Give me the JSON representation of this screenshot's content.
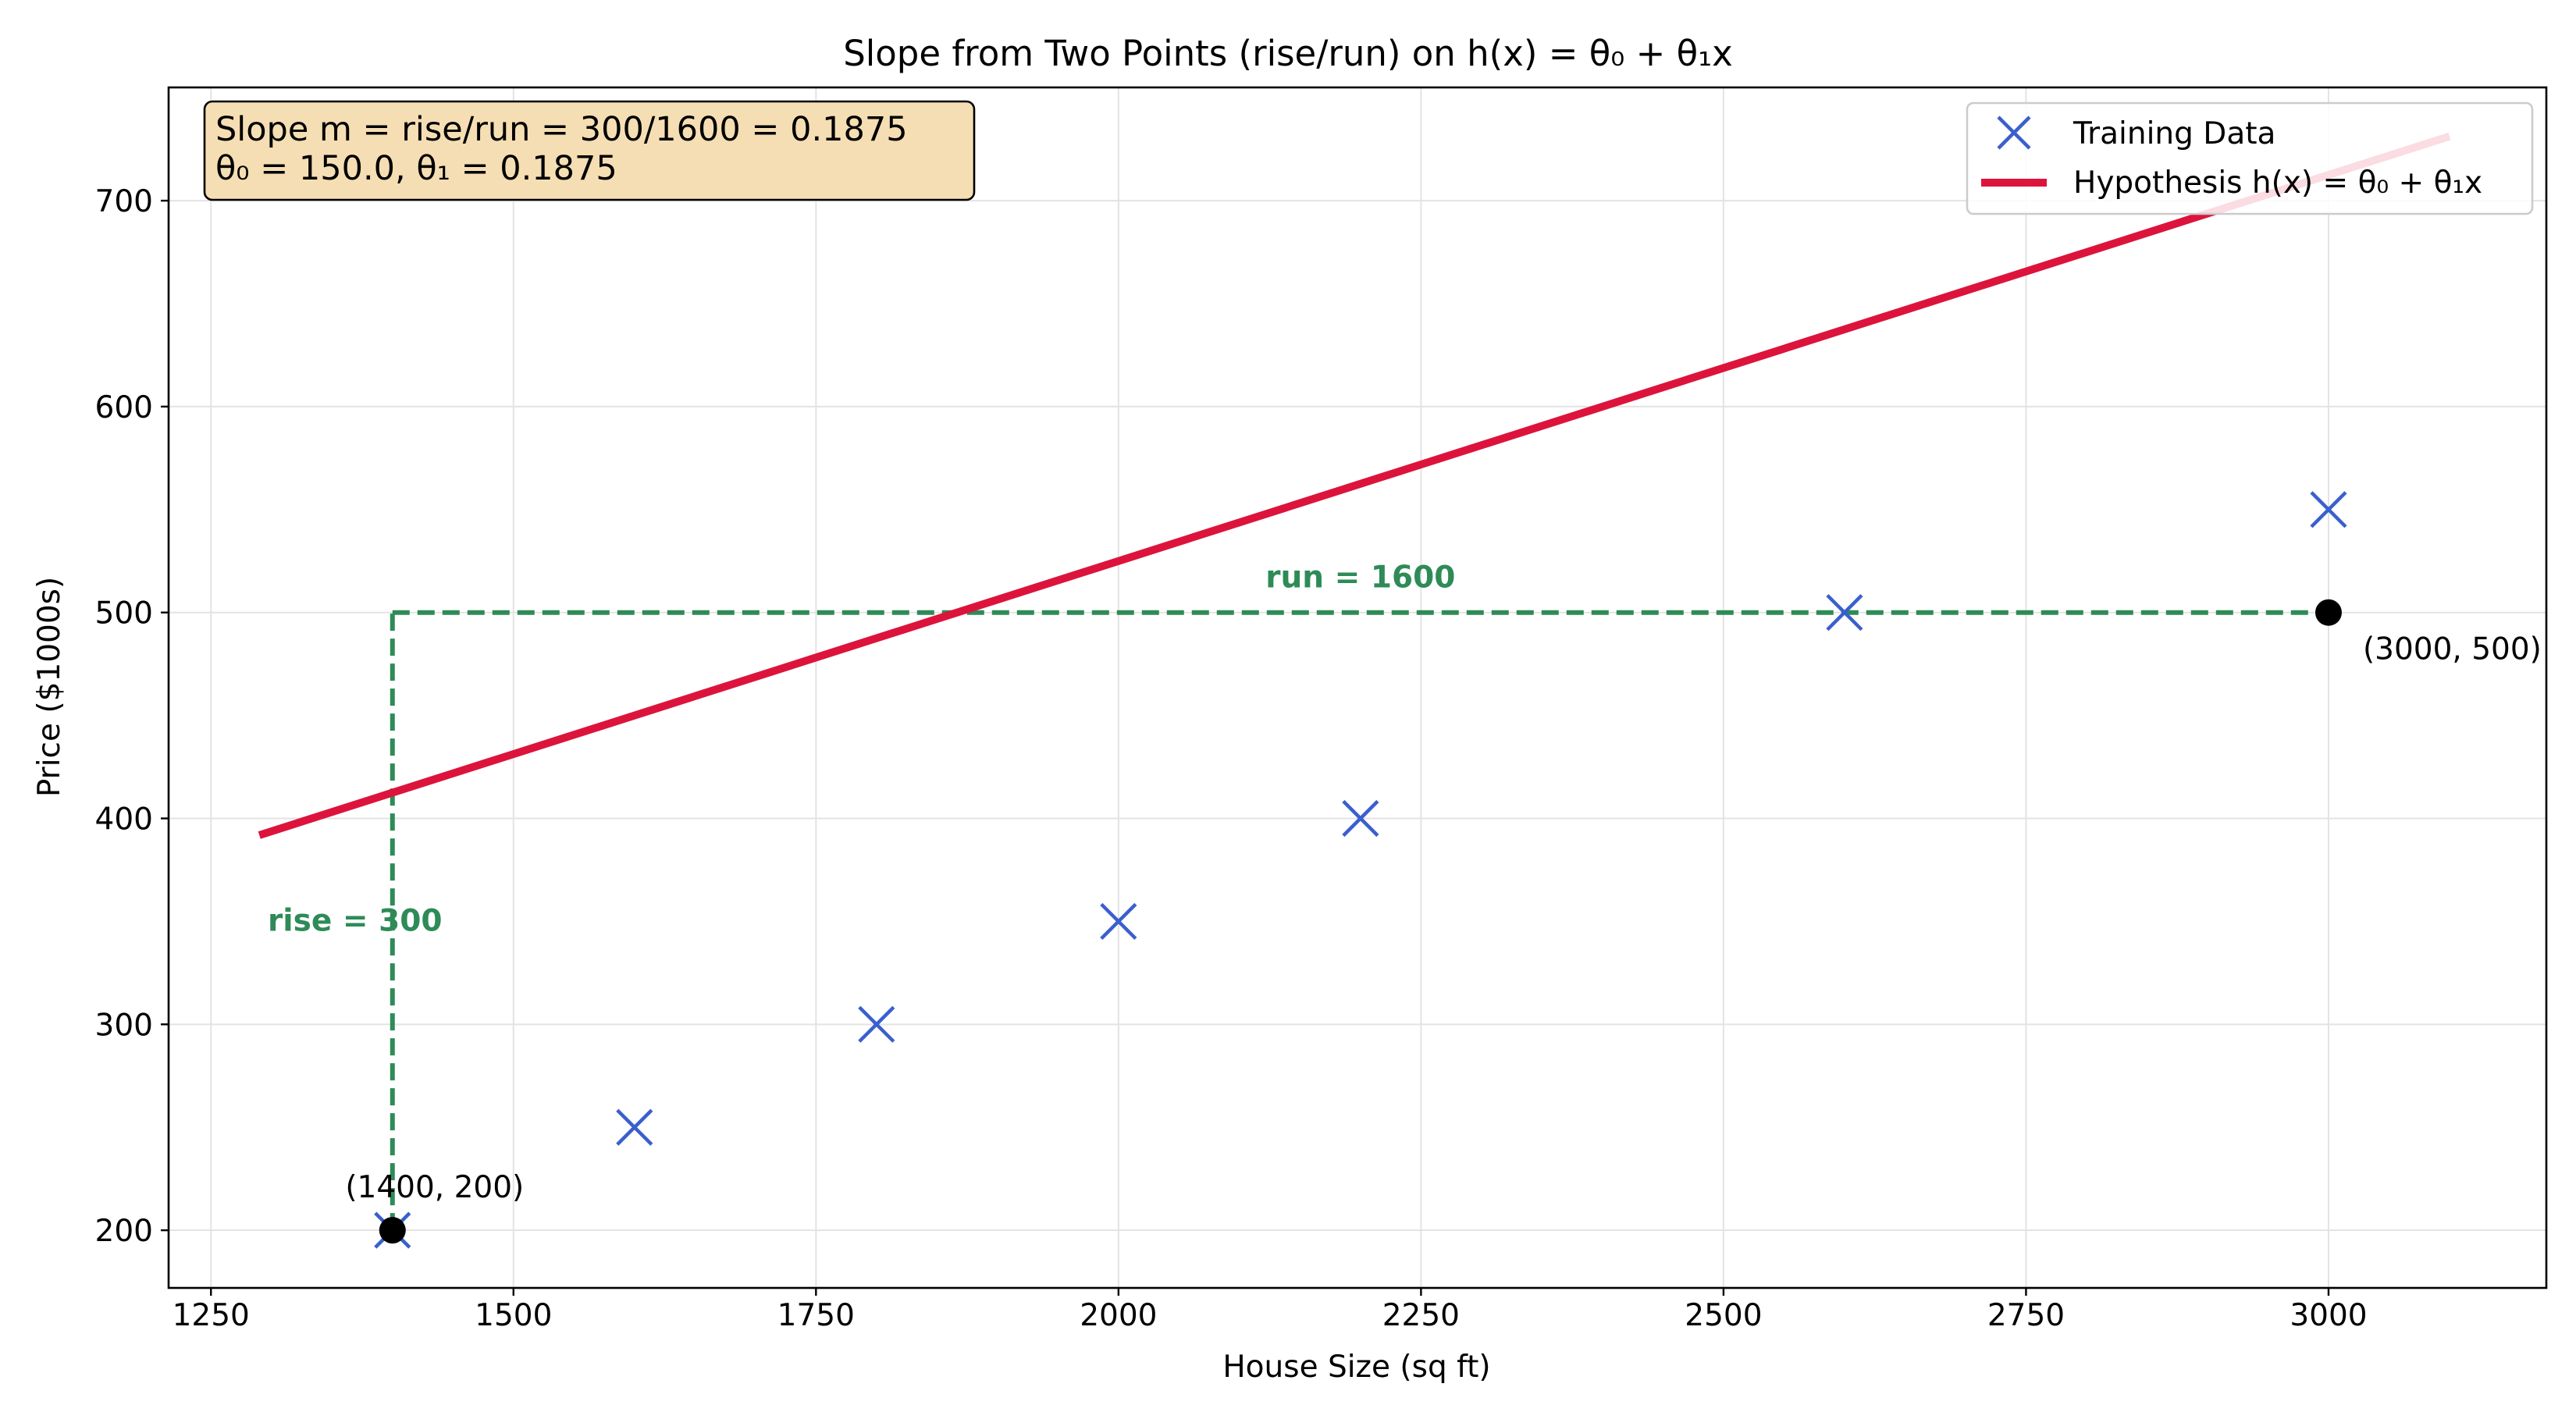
{
  "chart_data": {
    "type": "scatter",
    "title": "Slope from Two Points (rise/run) on h(x) = θ₀ + θ₁x",
    "xlabel": "House Size (sq ft)",
    "ylabel": "Price ($1000s)",
    "xlim": [
      1215,
      3180
    ],
    "ylim": [
      172,
      755
    ],
    "x_ticks": [
      1250,
      1500,
      1750,
      2000,
      2250,
      2500,
      2750,
      3000
    ],
    "y_ticks": [
      200,
      300,
      400,
      500,
      600,
      700
    ],
    "grid": true,
    "legend_position": "top-right",
    "series": [
      {
        "name": "Training Data",
        "marker": "x",
        "color": "#3a5fcd",
        "x": [
          1400,
          1600,
          1800,
          2000,
          2200,
          2600,
          3000
        ],
        "y": [
          200,
          250,
          300,
          350,
          400,
          500,
          550
        ]
      },
      {
        "name": "Hypothesis h(x) = θ₀ + θ₁x",
        "kind": "line",
        "color": "#dc143c",
        "x": [
          1290,
          3100
        ],
        "theta0": 150.0,
        "theta1": 0.1875
      }
    ],
    "points": [
      {
        "x": 1400,
        "y": 200,
        "label": "(1400, 200)"
      },
      {
        "x": 3000,
        "y": 500,
        "label": "(3000, 500)"
      }
    ],
    "rise_run": {
      "color": "#2e8b57",
      "x_start": 1400,
      "x_end": 3000,
      "y_start": 200,
      "y_end": 500,
      "rise_label": "rise = 300",
      "run_label": "run = 1600"
    },
    "info_box": {
      "line1": "Slope m = rise/run = 300/1600 = 0.1875",
      "line2": "θ₀ = 150.0, θ₁ = 0.1875",
      "background": "#f5deb3"
    }
  }
}
